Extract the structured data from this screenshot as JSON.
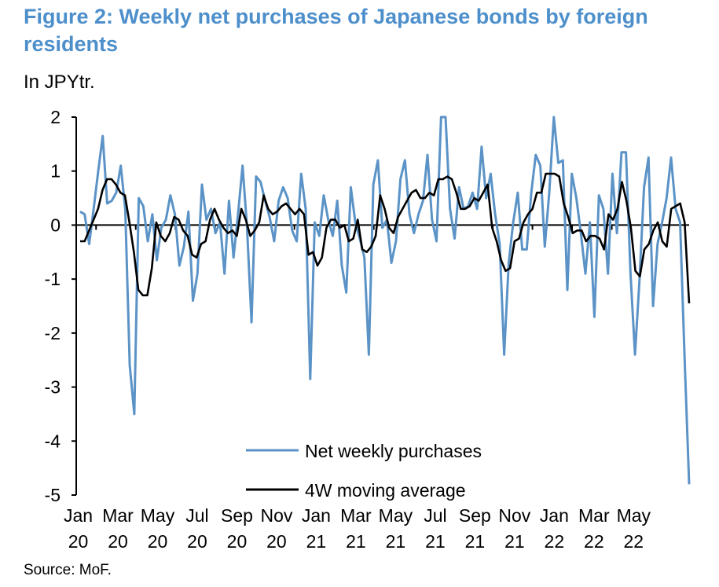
{
  "title": "Figure 2: Weekly net purchases of Japanese bonds by foreign residents",
  "subtitle": "In JPYtr.",
  "source": "Source: MoF.",
  "colors": {
    "title": "#4d8fcb",
    "net_weekly": "#5b93c7",
    "moving_average": "#000000"
  },
  "chart_data": {
    "type": "line",
    "title": "Figure 2: Weekly net purchases of Japanese bonds by foreign residents",
    "ylabel": "In JPYtr.",
    "xlabel": "",
    "ylim": [
      -5,
      2
    ],
    "y_ticks": [
      "2",
      "1",
      "0",
      "-1",
      "-2",
      "-3",
      "-4",
      "-5"
    ],
    "x_ticks": [
      {
        "month": "Jan",
        "year": "20"
      },
      {
        "month": "Mar",
        "year": "20"
      },
      {
        "month": "May",
        "year": "20"
      },
      {
        "month": "Jul",
        "year": "20"
      },
      {
        "month": "Sep",
        "year": "20"
      },
      {
        "month": "Nov",
        "year": "20"
      },
      {
        "month": "Jan",
        "year": "21"
      },
      {
        "month": "Mar",
        "year": "21"
      },
      {
        "month": "May",
        "year": "21"
      },
      {
        "month": "Jul",
        "year": "21"
      },
      {
        "month": "Sep",
        "year": "21"
      },
      {
        "month": "Nov",
        "year": "21"
      },
      {
        "month": "Jan",
        "year": "22"
      },
      {
        "month": "Mar",
        "year": "22"
      },
      {
        "month": "May",
        "year": "22"
      }
    ],
    "grid": false,
    "legend_position": "bottom-center",
    "series": [
      {
        "name": "Net weekly purchases",
        "values": [
          0.25,
          0.2,
          -0.35,
          0.3,
          1.0,
          1.65,
          0.4,
          0.45,
          0.6,
          1.1,
          0.3,
          -2.6,
          -3.5,
          0.5,
          0.35,
          -0.3,
          0.2,
          -0.65,
          -0.05,
          0.1,
          0.55,
          0.2,
          -0.75,
          -0.4,
          0.25,
          -1.4,
          -0.9,
          0.75,
          0.1,
          0.3,
          -0.15,
          0.05,
          -0.9,
          0.45,
          -0.6,
          0.2,
          1.1,
          -0.05,
          -1.8,
          0.9,
          0.8,
          0.45,
          0.15,
          -0.3,
          0.45,
          0.7,
          0.5,
          -0.1,
          -0.3,
          0.95,
          0.3,
          -2.85,
          0.05,
          -0.2,
          0.55,
          0.1,
          -0.2,
          0.45,
          -0.75,
          -1.25,
          0.7,
          0.05,
          -0.25,
          -0.6,
          -2.4,
          0.75,
          1.2,
          -0.05,
          0.1,
          -0.7,
          -0.3,
          0.85,
          1.2,
          0.2,
          -0.15,
          0.2,
          0.45,
          1.3,
          0.1,
          -0.3,
          2.0,
          2.0,
          0.3,
          -0.25,
          0.7,
          0.3,
          0.35,
          0.6,
          0.3,
          1.45,
          0.5,
          0.95,
          0.2,
          -0.35,
          -2.4,
          -0.7,
          0.05,
          0.6,
          -0.45,
          -0.45,
          0.6,
          1.3,
          1.1,
          -0.4,
          0.6,
          2.0,
          1.15,
          1.2,
          -1.2,
          0.95,
          0.5,
          -0.15,
          -0.9,
          0.05,
          -1.7,
          0.55,
          0.3,
          -0.9,
          0.95,
          -0.15,
          1.35,
          1.35,
          -0.9,
          -2.4,
          -1.0,
          0.7,
          1.25,
          -1.5,
          -0.35,
          0.05,
          0.5,
          1.25,
          0.3,
          0.05,
          -2.5,
          -4.8
        ]
      },
      {
        "name": "4W moving average",
        "values": [
          -0.3,
          -0.3,
          -0.1,
          0.1,
          0.3,
          0.65,
          0.85,
          0.85,
          0.75,
          0.6,
          0.55,
          0.05,
          -0.5,
          -1.2,
          -1.3,
          -1.3,
          -0.8,
          0.05,
          -0.2,
          -0.3,
          -0.15,
          0.15,
          0.1,
          -0.1,
          -0.2,
          -0.55,
          -0.6,
          -0.35,
          -0.3,
          0.1,
          0.3,
          0.1,
          -0.05,
          -0.15,
          -0.1,
          -0.2,
          0.3,
          0.1,
          -0.2,
          -0.1,
          0.05,
          0.55,
          0.3,
          0.2,
          0.25,
          0.35,
          0.4,
          0.3,
          0.2,
          0.3,
          0.2,
          -0.55,
          -0.5,
          -0.75,
          -0.6,
          -0.05,
          0.1,
          0.1,
          -0.05,
          0.0,
          -0.3,
          -0.25,
          0.1,
          -0.45,
          -0.5,
          -0.4,
          -0.2,
          0.55,
          0.3,
          -0.05,
          -0.15,
          0.15,
          0.3,
          0.45,
          0.6,
          0.65,
          0.5,
          0.5,
          0.6,
          0.55,
          0.85,
          0.85,
          0.9,
          0.85,
          0.6,
          0.3,
          0.3,
          0.35,
          0.5,
          0.45,
          0.6,
          0.75,
          -0.05,
          -0.3,
          -0.65,
          -0.85,
          -0.8,
          -0.3,
          -0.25,
          0.05,
          0.2,
          0.3,
          0.6,
          0.6,
          0.95,
          0.95,
          0.95,
          0.9,
          0.4,
          0.15,
          -0.15,
          -0.1,
          -0.1,
          -0.3,
          -0.2,
          -0.2,
          -0.25,
          -0.45,
          0.2,
          0.1,
          0.3,
          0.8,
          0.45,
          -0.05,
          -0.85,
          -0.95,
          -0.45,
          -0.35,
          -0.1,
          0.05,
          -0.3,
          -0.4,
          0.3,
          0.35,
          0.4,
          0.05,
          -1.45
        ]
      }
    ]
  }
}
